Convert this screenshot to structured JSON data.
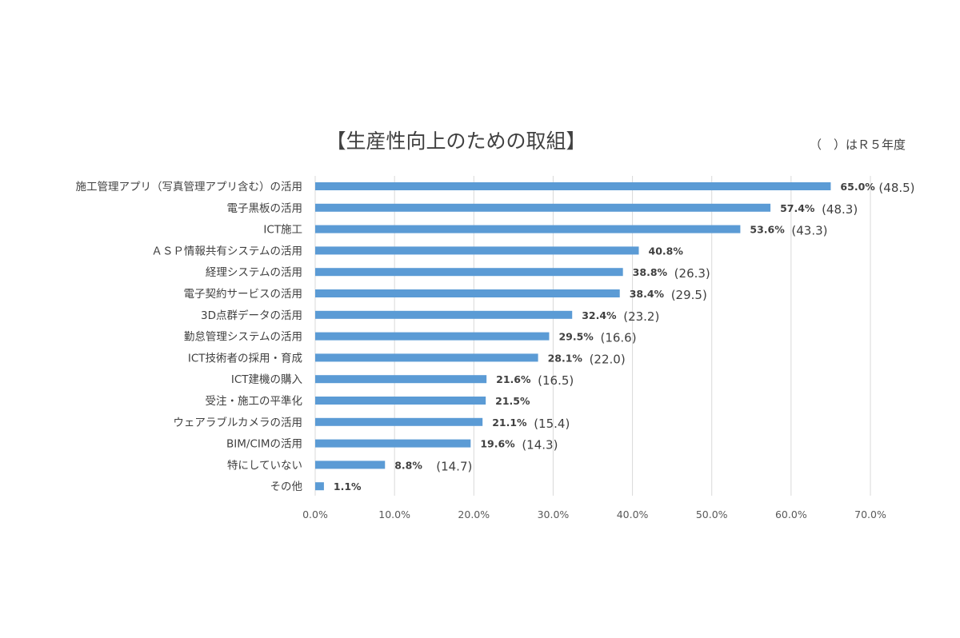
{
  "chart_data": {
    "type": "bar",
    "orientation": "horizontal",
    "title": "【生産性向上のための取組】",
    "note": "（　）はＲ５年度",
    "categories": [
      "施工管理アプリ（写真管理アプリ含む）の活用",
      "電子黒板の活用",
      "ICT施工",
      "ＡＳＰ情報共有システムの活用",
      "経理システムの活用",
      "電子契約サービスの活用",
      "3D点群データの活用",
      "勤怠管理システムの活用",
      "ICT技術者の採用・育成",
      "ICT建機の購入",
      "受注・施工の平準化",
      "ウェアラブルカメラの活用",
      "BIM/CIMの活用",
      "特にしていない",
      "その他"
    ],
    "values": [
      65.0,
      57.4,
      53.6,
      40.8,
      38.8,
      38.4,
      32.4,
      29.5,
      28.1,
      21.6,
      21.5,
      21.1,
      19.6,
      8.8,
      1.1
    ],
    "value_labels": [
      "65.0%",
      "57.4%",
      "53.6%",
      "40.8%",
      "38.8%",
      "38.4%",
      "32.4%",
      "29.5%",
      "28.1%",
      "21.6%",
      "21.5%",
      "21.1%",
      "19.6%",
      "8.8%",
      "1.1%"
    ],
    "previous_labels": [
      "(48.5)",
      "(48.3)",
      "(43.3)",
      "",
      "(26.3)",
      "(29.5)",
      "(23.2)",
      "(16.6)",
      "(22.0)",
      "(16.5)",
      "",
      "(15.4)",
      "(14.3)",
      "(14.7)",
      ""
    ],
    "xlim": [
      0,
      70
    ],
    "x_ticks": [
      "0.0%",
      "10.0%",
      "20.0%",
      "30.0%",
      "40.0%",
      "50.0%",
      "60.0%",
      "70.0%"
    ],
    "grid": "vertical",
    "bar_color": "#5b9bd5"
  }
}
